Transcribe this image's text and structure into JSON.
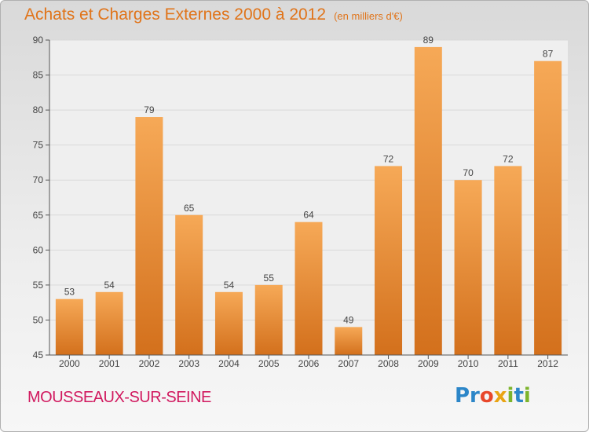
{
  "header": {
    "title": "Achats et Charges Externes 2000 à 2012",
    "unit": "(en milliers d'€)"
  },
  "footer": {
    "city": "MOUSSEAUX-SUR-SEINE",
    "brand_parts": [
      "Pr",
      "o",
      "x",
      "i",
      "t",
      "i"
    ]
  },
  "colors": {
    "bar_light": "#f6a957",
    "bar_dark": "#d3701c",
    "title": "#e0741a",
    "city": "#d1195f",
    "axis": "#555555"
  },
  "chart_data": {
    "type": "bar",
    "title": "Achats et Charges Externes 2000 à 2012",
    "subtitle": "(en milliers d'€)",
    "categories": [
      "2000",
      "2001",
      "2002",
      "2003",
      "2004",
      "2005",
      "2006",
      "2007",
      "2008",
      "2009",
      "2010",
      "2011",
      "2012"
    ],
    "values": [
      53,
      54,
      79,
      65,
      54,
      55,
      64,
      49,
      72,
      89,
      70,
      72,
      87
    ],
    "ylim": [
      45,
      90
    ],
    "yticks": [
      45,
      50,
      55,
      60,
      65,
      70,
      75,
      80,
      85,
      90
    ],
    "grid": true,
    "xlabel": "",
    "ylabel": ""
  }
}
